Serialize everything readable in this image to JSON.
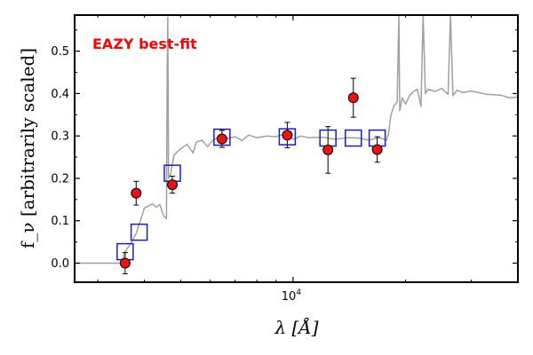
{
  "chart_data": {
    "type": "scatter",
    "annotation": "EAZY best-fit",
    "annotation_color": "#ff0000",
    "xlabel": "λ [Å]",
    "ylabel": "f_ν [arbitrarily scaled]",
    "xscale": "log",
    "xlim": [
      2600,
      40000
    ],
    "ylim": [
      -0.045,
      0.585
    ],
    "xticks": [
      {
        "value": 10000,
        "label": "10",
        "exp": "4"
      }
    ],
    "yticks": [
      {
        "value": 0.0,
        "label": "0.0"
      },
      {
        "value": 0.1,
        "label": "0.1"
      },
      {
        "value": 0.2,
        "label": "0.2"
      },
      {
        "value": 0.3,
        "label": "0.3"
      },
      {
        "value": 0.4,
        "label": "0.4"
      },
      {
        "value": 0.5,
        "label": "0.5"
      }
    ],
    "grid": false,
    "colors": {
      "observed_fill": "#ee1111",
      "observed_edge": "#000000",
      "model_box": "#1a1acc",
      "sed": "#a0a0a0"
    },
    "observed_points": [
      {
        "x": 3550,
        "y": 0.0,
        "err": 0.025
      },
      {
        "x": 3800,
        "y": 0.165,
        "err": 0.028
      },
      {
        "x": 4750,
        "y": 0.185,
        "err": 0.02
      },
      {
        "x": 6450,
        "y": 0.293,
        "err": 0.02
      },
      {
        "x": 9650,
        "y": 0.302,
        "err": 0.03
      },
      {
        "x": 12400,
        "y": 0.267,
        "err": 0.055
      },
      {
        "x": 14500,
        "y": 0.39,
        "err": 0.046
      },
      {
        "x": 16800,
        "y": 0.268,
        "err": 0.03
      }
    ],
    "model_points": [
      {
        "x": 3550,
        "y": 0.027
      },
      {
        "x": 3870,
        "y": 0.073
      },
      {
        "x": 4750,
        "y": 0.212
      },
      {
        "x": 6450,
        "y": 0.297
      },
      {
        "x": 9650,
        "y": 0.298
      },
      {
        "x": 12400,
        "y": 0.295
      },
      {
        "x": 14500,
        "y": 0.295
      },
      {
        "x": 16800,
        "y": 0.295
      }
    ],
    "sed_curve": [
      [
        2600,
        0.0
      ],
      [
        3500,
        0.0
      ],
      [
        3520,
        0.02
      ],
      [
        3600,
        0.035
      ],
      [
        3700,
        0.05
      ],
      [
        3800,
        0.07
      ],
      [
        3900,
        0.1
      ],
      [
        4000,
        0.13
      ],
      [
        4100,
        0.135
      ],
      [
        4200,
        0.14
      ],
      [
        4300,
        0.132
      ],
      [
        4400,
        0.138
      ],
      [
        4500,
        0.112
      ],
      [
        4580,
        0.105
      ],
      [
        4600,
        0.45
      ],
      [
        4620,
        0.58
      ],
      [
        4640,
        0.2
      ],
      [
        4700,
        0.21
      ],
      [
        4800,
        0.255
      ],
      [
        5000,
        0.27
      ],
      [
        5200,
        0.28
      ],
      [
        5400,
        0.26
      ],
      [
        5500,
        0.285
      ],
      [
        5700,
        0.29
      ],
      [
        5900,
        0.275
      ],
      [
        6100,
        0.29
      ],
      [
        6300,
        0.296
      ],
      [
        6500,
        0.284
      ],
      [
        6700,
        0.295
      ],
      [
        7000,
        0.298
      ],
      [
        7300,
        0.289
      ],
      [
        7600,
        0.302
      ],
      [
        8000,
        0.296
      ],
      [
        8500,
        0.3
      ],
      [
        9000,
        0.298
      ],
      [
        9500,
        0.305
      ],
      [
        10000,
        0.292
      ],
      [
        10500,
        0.3
      ],
      [
        11000,
        0.296
      ],
      [
        12000,
        0.297
      ],
      [
        13000,
        0.292
      ],
      [
        14000,
        0.296
      ],
      [
        15000,
        0.295
      ],
      [
        16000,
        0.29
      ],
      [
        17000,
        0.296
      ],
      [
        17800,
        0.29
      ],
      [
        18000,
        0.305
      ],
      [
        18300,
        0.35
      ],
      [
        18600,
        0.37
      ],
      [
        19000,
        0.38
      ],
      [
        19200,
        0.585
      ],
      [
        19300,
        0.36
      ],
      [
        19600,
        0.39
      ],
      [
        20000,
        0.375
      ],
      [
        20500,
        0.395
      ],
      [
        21000,
        0.405
      ],
      [
        21500,
        0.41
      ],
      [
        22000,
        0.37
      ],
      [
        22300,
        0.585
      ],
      [
        22600,
        0.4
      ],
      [
        23000,
        0.41
      ],
      [
        24000,
        0.405
      ],
      [
        25000,
        0.412
      ],
      [
        26000,
        0.398
      ],
      [
        26400,
        0.585
      ],
      [
        26800,
        0.395
      ],
      [
        27500,
        0.408
      ],
      [
        28500,
        0.402
      ],
      [
        30000,
        0.406
      ],
      [
        33000,
        0.398
      ],
      [
        36000,
        0.396
      ],
      [
        38000,
        0.39
      ],
      [
        40000,
        0.392
      ]
    ]
  }
}
